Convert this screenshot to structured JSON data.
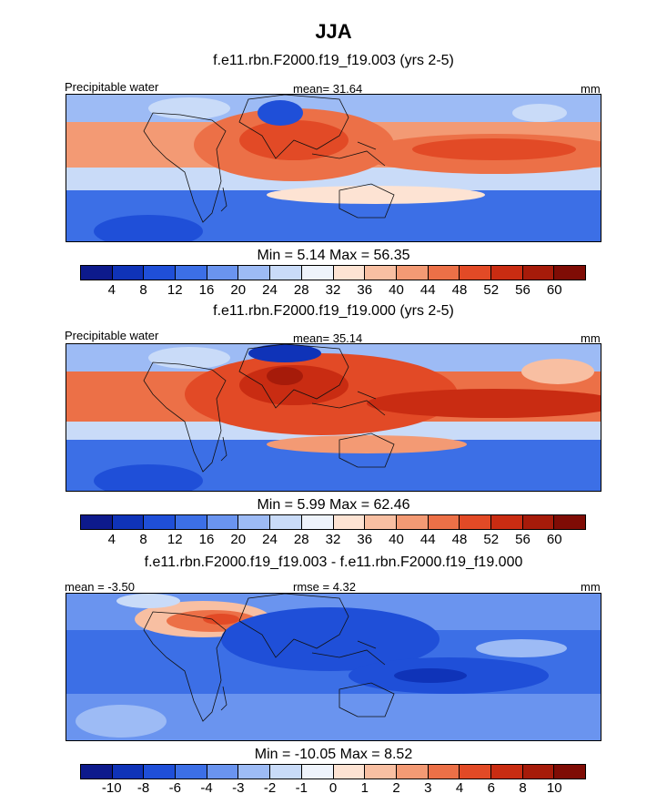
{
  "figure_title": "JJA",
  "panels": [
    {
      "title": "f.e11.rbn.F2000.f19_f19.003 (yrs 2-5)",
      "left_label": "Precipitable water",
      "center_label": "mean=  31.64",
      "right_label": "mm",
      "minmax": "Min =   5.14 Max =  56.35",
      "colorbar_labels": [
        "4",
        "8",
        "12",
        "16",
        "20",
        "24",
        "28",
        "32",
        "36",
        "40",
        "44",
        "48",
        "52",
        "56",
        "60"
      ]
    },
    {
      "title": "f.e11.rbn.F2000.f19_f19.000 (yrs 2-5)",
      "left_label": "Precipitable water",
      "center_label": "mean=  35.14",
      "right_label": "mm",
      "minmax": "Min =   5.99 Max =  62.46",
      "colorbar_labels": [
        "4",
        "8",
        "12",
        "16",
        "20",
        "24",
        "28",
        "32",
        "36",
        "40",
        "44",
        "48",
        "52",
        "56",
        "60"
      ]
    },
    {
      "title": "f.e11.rbn.F2000.f19_f19.003 - f.e11.rbn.F2000.f19_f19.000",
      "left_label": "mean =  -3.50",
      "center_label": "rmse =   4.32",
      "right_label": "mm",
      "minmax": "Min = -10.05 Max =   8.52",
      "colorbar_labels": [
        "-10",
        "-8",
        "-6",
        "-4",
        "-3",
        "-2",
        "-1",
        "0",
        "1",
        "2",
        "3",
        "4",
        "6",
        "8",
        "10"
      ]
    }
  ],
  "colors": {
    "scale": [
      "#0d1a8c",
      "#0f33b8",
      "#1f4fd8",
      "#3c6fe6",
      "#6a94ef",
      "#9dbbf5",
      "#c9dbf8",
      "#eef3fb",
      "#fde3d3",
      "#f8bfa2",
      "#f39a74",
      "#ec7047",
      "#e24a26",
      "#c92c12",
      "#a61b0a",
      "#7f0c05"
    ]
  },
  "chart_data": [
    {
      "type": "heatmap",
      "title": "f.e11.rbn.F2000.f19_f19.003 (yrs 2-5)",
      "variable": "Precipitable water",
      "units": "mm",
      "season": "JJA",
      "mean": 31.64,
      "min": 5.14,
      "max": 56.35,
      "contour_levels": [
        4,
        8,
        12,
        16,
        20,
        24,
        28,
        32,
        36,
        40,
        44,
        48,
        52,
        56,
        60
      ]
    },
    {
      "type": "heatmap",
      "title": "f.e11.rbn.F2000.f19_f19.000 (yrs 2-5)",
      "variable": "Precipitable water",
      "units": "mm",
      "season": "JJA",
      "mean": 35.14,
      "min": 5.99,
      "max": 62.46,
      "contour_levels": [
        4,
        8,
        12,
        16,
        20,
        24,
        28,
        32,
        36,
        40,
        44,
        48,
        52,
        56,
        60
      ]
    },
    {
      "type": "heatmap",
      "title": "f.e11.rbn.F2000.f19_f19.003 - f.e11.rbn.F2000.f19_f19.000",
      "units": "mm",
      "season": "JJA",
      "mean": -3.5,
      "rmse": 4.32,
      "min": -10.05,
      "max": 8.52,
      "contour_levels": [
        -10,
        -8,
        -6,
        -4,
        -3,
        -2,
        -1,
        0,
        1,
        2,
        3,
        4,
        6,
        8,
        10
      ]
    }
  ]
}
